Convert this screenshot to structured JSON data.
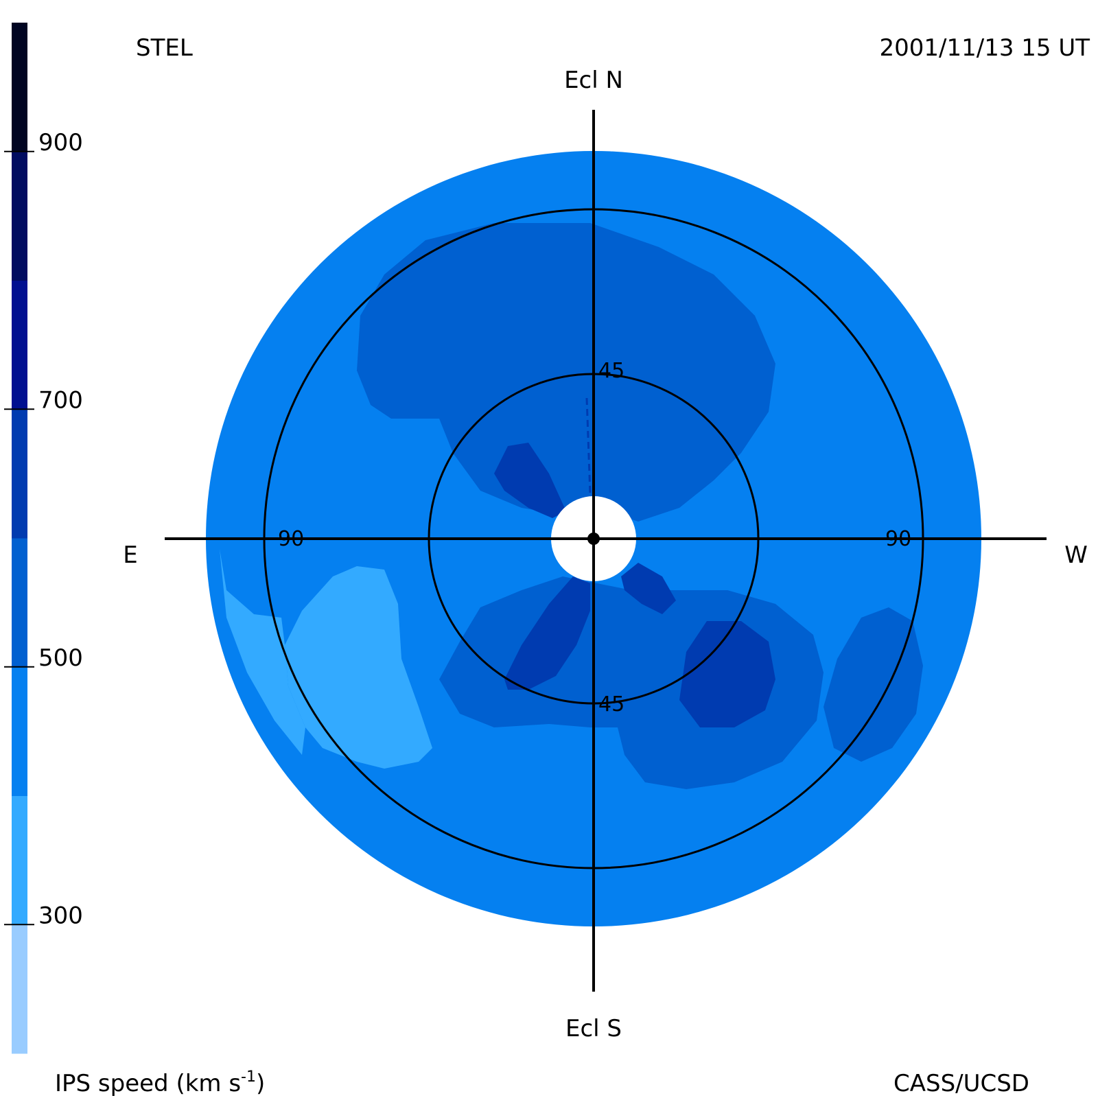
{
  "header": {
    "source": "STEL",
    "timestamp": "2001/11/13 15 UT",
    "credit": "CASS/UCSD"
  },
  "chart_data": {
    "type": "heatmap",
    "projection": "fisheye sky map (elongation from Sun)",
    "directions": {
      "top": "Ecl N",
      "bottom": "Ecl S",
      "left": "E",
      "right": "W"
    },
    "rings": [
      {
        "elongation": 45,
        "labels": [
          "45",
          "45"
        ]
      },
      {
        "elongation": 90,
        "labels": [
          "90",
          "90"
        ]
      }
    ],
    "colorbar": {
      "label_main": "IPS speed (km s",
      "label_sup": "-1",
      "label_end": ")",
      "range": [
        200,
        1000
      ],
      "ticks": [
        {
          "value": 300,
          "label": "300"
        },
        {
          "value": 500,
          "label": "500"
        },
        {
          "value": 700,
          "label": "700"
        },
        {
          "value": 900,
          "label": "900"
        }
      ],
      "bands": [
        {
          "from": 200,
          "to": 300,
          "color": "#99ccff"
        },
        {
          "from": 300,
          "to": 400,
          "color": "#33aaff"
        },
        {
          "from": 400,
          "to": 500,
          "color": "#0580f0"
        },
        {
          "from": 500,
          "to": 600,
          "color": "#0060d0"
        },
        {
          "from": 600,
          "to": 700,
          "color": "#003bb0"
        },
        {
          "from": 700,
          "to": 800,
          "color": "#001090"
        },
        {
          "from": 800,
          "to": 900,
          "color": "#000c60"
        },
        {
          "from": 900,
          "to": 1000,
          "color": "#000522"
        }
      ]
    },
    "outer_elongation": 110,
    "regions": [
      {
        "name": "background",
        "speed": 450,
        "color": "#0580f0"
      },
      {
        "name": "northern-upper-high-speed-region",
        "speed": 550,
        "color": "#0060d0"
      },
      {
        "name": "southern-lower-high-speed-region",
        "speed": 550,
        "color": "#0060d0"
      },
      {
        "name": "southwest-high-speed-region",
        "speed": 550,
        "color": "#0060d0"
      },
      {
        "name": "southeast-low-speed-region",
        "speed": 350,
        "color": "#33aaff"
      },
      {
        "name": "peak-speed-lobes",
        "speed": 650,
        "color": "#003bb0"
      }
    ]
  }
}
